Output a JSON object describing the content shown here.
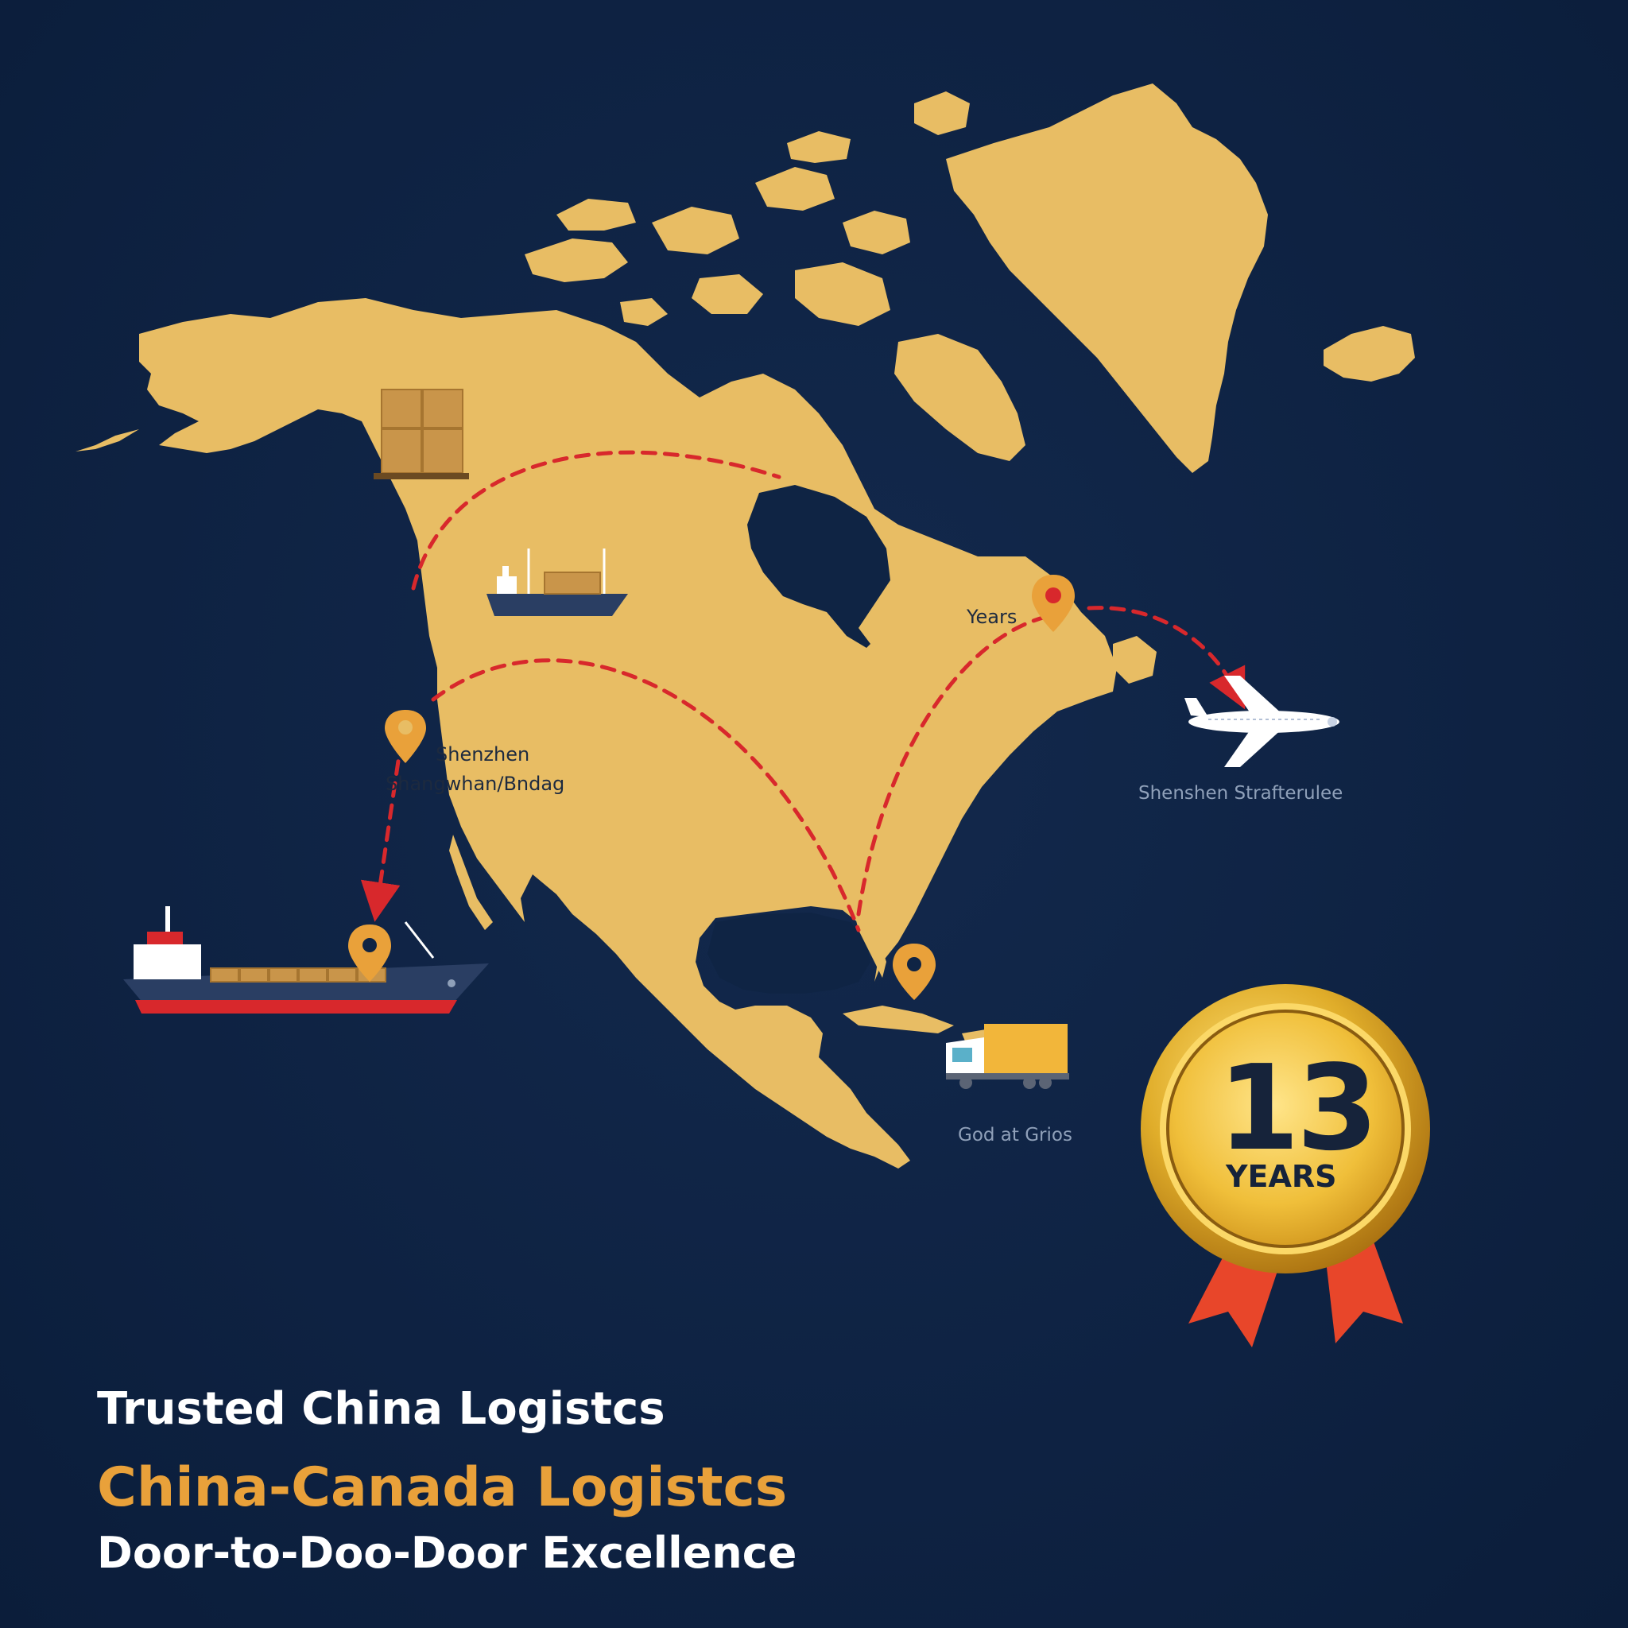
{
  "map": {
    "labels": {
      "east_pin": "Years",
      "west_pin_line1": "Shenzhen",
      "west_pin_line2": "Shangwhan/Bndag",
      "ocean_east": "Shenshen Strafterulee",
      "caribbean": "God at Grios"
    }
  },
  "badge": {
    "number": "13",
    "text": "YEARS"
  },
  "headline": {
    "line1": "Trusted China Logistcs",
    "line2": "China-Canada Logistcs",
    "line3": "Door-to-Doo-Door Excellence"
  },
  "colors": {
    "background": "#0f2444",
    "land": "#e8bd64",
    "route": "#d8282c",
    "accent": "#e9a13a",
    "badge_gold": "#d9a521",
    "ribbon": "#e8462a"
  },
  "icons": [
    "box-stack-icon",
    "cargo-ship-icon",
    "airplane-icon",
    "truck-icon",
    "location-pin-icon",
    "award-badge-icon"
  ]
}
